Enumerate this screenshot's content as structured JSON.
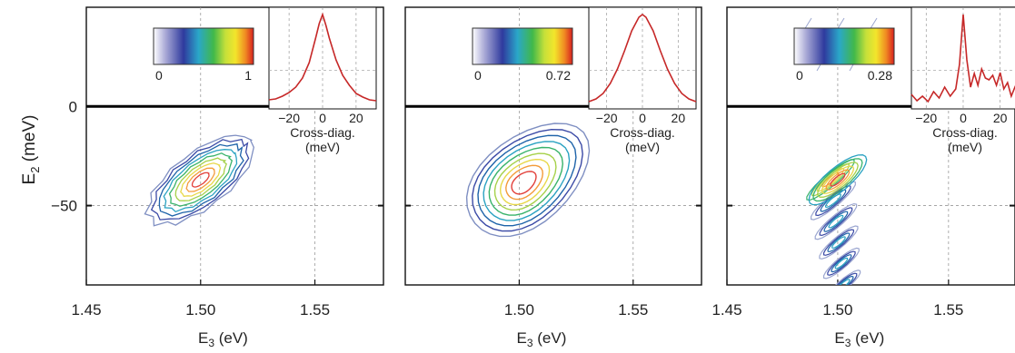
{
  "figure": {
    "ylabel_main": "E",
    "ylabel_sub": "2",
    "ylabel_unit": "(meV)",
    "xlabel_main": "E",
    "xlabel_sub": "3",
    "xlabel_unit": "(eV)"
  },
  "chart_data": [
    {
      "type": "contour",
      "xlim": [
        1.45,
        1.58
      ],
      "ylim": [
        -90,
        50
      ],
      "x_ticks": [
        "1.45",
        "1.50",
        "1.55"
      ],
      "x_tick_values": [
        1.45,
        1.5,
        1.55
      ],
      "y_ticks": [
        "0",
        "−50"
      ],
      "y_tick_values": [
        0,
        -50
      ],
      "peak": {
        "x": 1.5,
        "y": -37
      },
      "colorbar": {
        "min_label": "0",
        "max_label": "1",
        "min": 0,
        "max": 1
      },
      "inset": {
        "type": "line",
        "xlabel_line1": "Cross-diag.",
        "xlabel_line2": "(meV)",
        "x_ticks": [
          "−20",
          "0",
          "20"
        ],
        "x_tick_values": [
          -20,
          0,
          20
        ],
        "xlim": [
          -32,
          32
        ],
        "series": [
          {
            "x": [
              -32,
              -28,
              -24,
              -20,
              -16,
              -12,
              -8,
              -4,
              -2,
              0,
              2,
              4,
              8,
              12,
              16,
              20,
              24,
              28,
              32
            ],
            "y": [
              0.06,
              0.07,
              0.1,
              0.14,
              0.2,
              0.3,
              0.47,
              0.75,
              0.9,
              1.0,
              0.88,
              0.74,
              0.5,
              0.33,
              0.22,
              0.13,
              0.09,
              0.06,
              0.05
            ]
          }
        ]
      }
    },
    {
      "type": "contour",
      "xlim": [
        1.45,
        1.58
      ],
      "ylim": [
        -90,
        50
      ],
      "x_ticks": [
        "1.50",
        "1.55"
      ],
      "x_tick_values": [
        1.5,
        1.55
      ],
      "y_ticks": [],
      "y_tick_values": [],
      "peak": {
        "x": 1.5,
        "y": -37
      },
      "colorbar": {
        "min_label": "0",
        "max_label": "0.72",
        "min": 0,
        "max": 0.72
      },
      "inset": {
        "type": "line",
        "xlabel_line1": "Cross-diag.",
        "xlabel_line2": "(meV)",
        "x_ticks": [
          "−20",
          "0",
          "20"
        ],
        "x_tick_values": [
          -20,
          0,
          20
        ],
        "xlim": [
          -30,
          30
        ],
        "series": [
          {
            "x": [
              -30,
              -26,
              -22,
              -18,
              -14,
              -10,
              -6,
              -2,
              0,
              2,
              6,
              10,
              14,
              18,
              22,
              26,
              30
            ],
            "y": [
              0.04,
              0.07,
              0.13,
              0.24,
              0.4,
              0.6,
              0.82,
              0.97,
              1.0,
              0.97,
              0.82,
              0.6,
              0.4,
              0.24,
              0.13,
              0.07,
              0.04
            ]
          }
        ]
      }
    },
    {
      "type": "contour",
      "xlim": [
        1.45,
        1.58
      ],
      "ylim": [
        -90,
        50
      ],
      "x_ticks": [
        "1.45",
        "1.50",
        "1.55"
      ],
      "x_tick_values": [
        1.45,
        1.5,
        1.55
      ],
      "y_ticks": [],
      "y_tick_values": [],
      "peak": {
        "x": 1.5,
        "y": -37
      },
      "colorbar": {
        "min_label": "0",
        "max_label": "0.28",
        "min": 0,
        "max": 0.28
      },
      "inset": {
        "type": "line",
        "xlabel_line1": "Cross-diag.",
        "xlabel_line2": "(meV)",
        "x_ticks": [
          "−20",
          "0",
          "20"
        ],
        "x_tick_values": [
          -20,
          0,
          20
        ],
        "xlim": [
          -28,
          30
        ],
        "series": [
          {
            "x": [
              -28,
              -25,
              -22,
              -19,
              -16,
              -13,
              -10,
              -7,
              -4,
              -2,
              0,
              2,
              4,
              6,
              8,
              10,
              12,
              14,
              16,
              18,
              20,
              22,
              24,
              26,
              28,
              30
            ],
            "y": [
              0.12,
              0.05,
              0.1,
              0.04,
              0.15,
              0.08,
              0.2,
              0.1,
              0.18,
              0.45,
              1.0,
              0.5,
              0.2,
              0.35,
              0.22,
              0.4,
              0.3,
              0.28,
              0.33,
              0.22,
              0.36,
              0.18,
              0.25,
              0.1,
              0.2,
              0.12
            ]
          }
        ]
      }
    }
  ]
}
